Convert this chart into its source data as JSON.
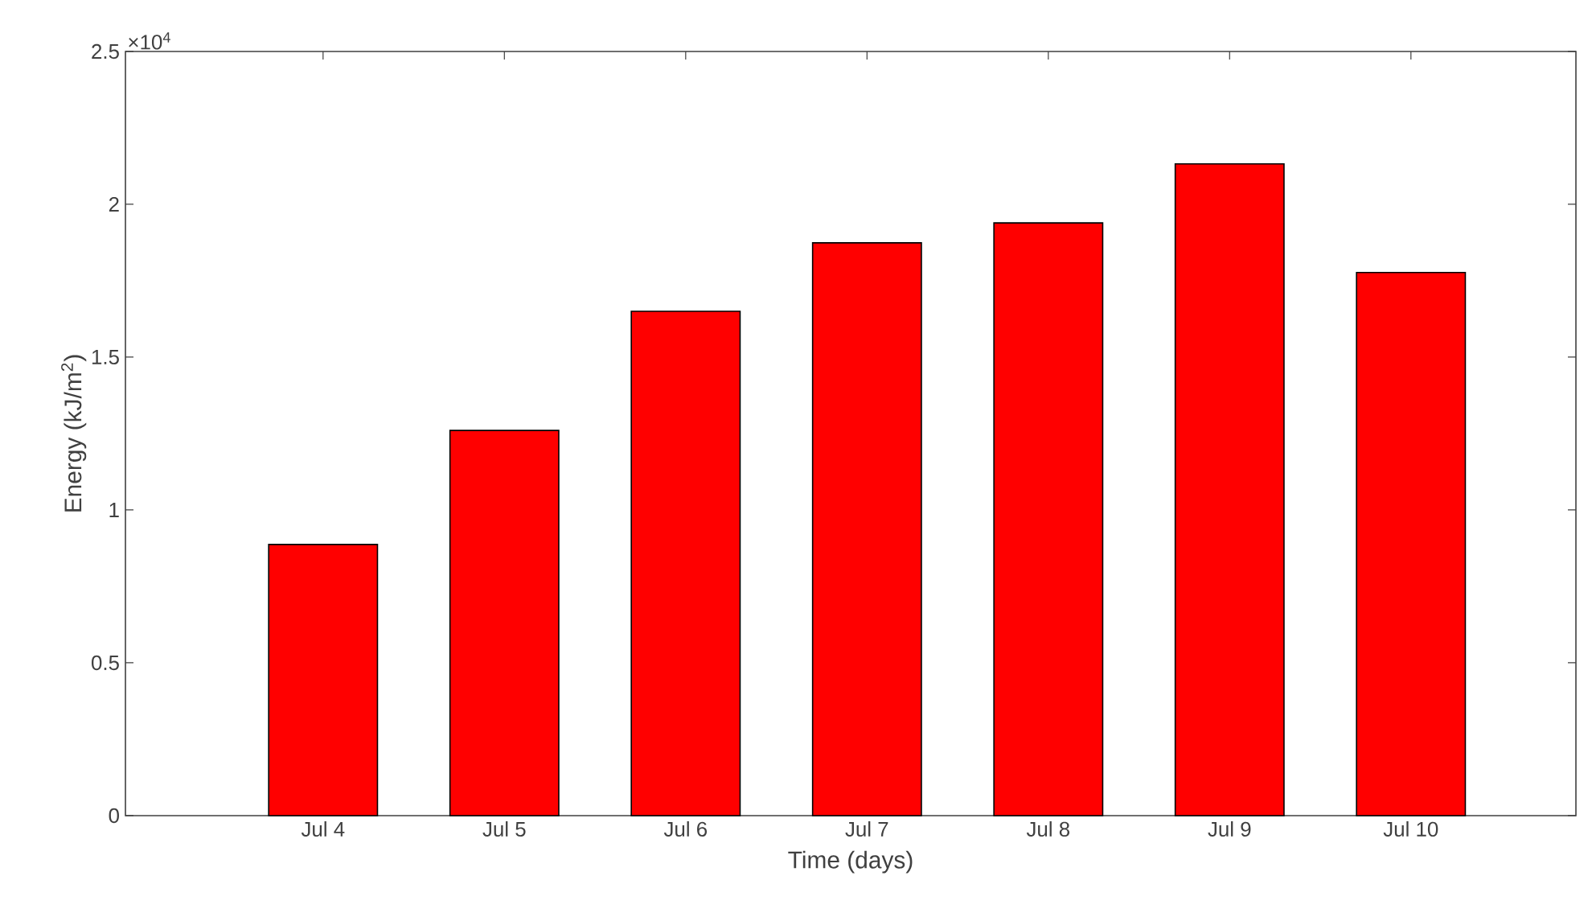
{
  "chart_data": {
    "type": "bar",
    "xlabel": "Time (days)",
    "ylabel": "Energy (kJ/m$^{2}$)",
    "annotations": [
      "×10$^{4}$"
    ],
    "categories": [
      "Jul 4",
      "Jul 5",
      "Jul 6",
      "Jul 7",
      "Jul 8",
      "Jul 9",
      "Jul 10"
    ],
    "values": [
      0.887,
      1.26,
      1.65,
      1.874,
      1.939,
      2.132,
      1.777
    ],
    "color": "#ff0000",
    "ylim": [
      0,
      2.5
    ],
    "yticks": [
      0,
      0.5,
      1,
      1.5,
      2,
      2.5
    ]
  }
}
